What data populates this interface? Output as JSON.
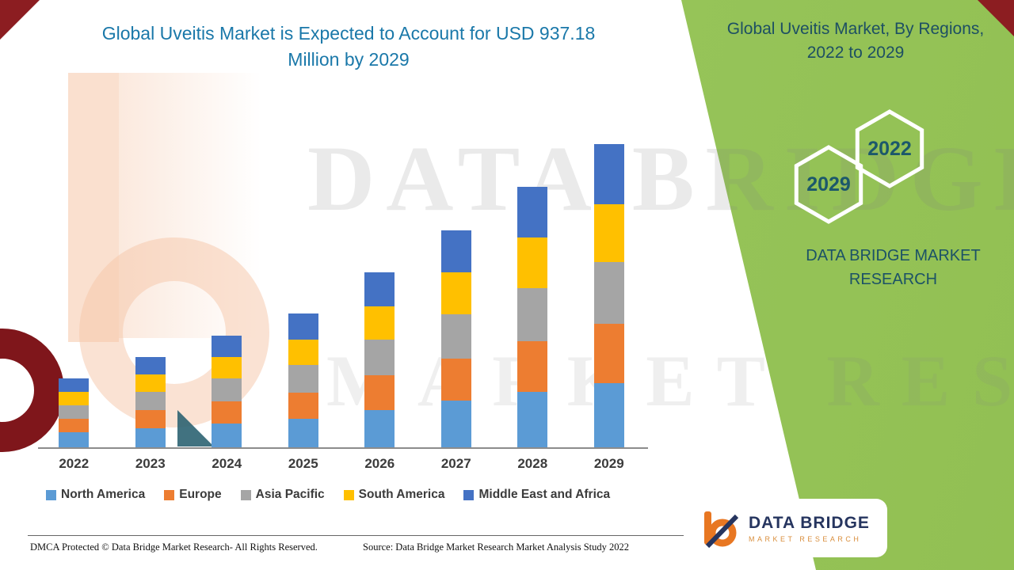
{
  "page": {
    "title_line1": "Global Uveitis Market is Expected to Account for USD 937.18",
    "title_line2": "Million by 2029"
  },
  "side_panel": {
    "heading_line1": "Global Uveitis Market, By Regions,",
    "heading_line2": "2022 to 2029",
    "hexagon_top": "2022",
    "hexagon_bottom": "2029",
    "brand_line1": "DATA BRIDGE MARKET",
    "brand_line2": "RESEARCH"
  },
  "watermark": {
    "line1": "DATA BRIDGE",
    "line2": "MARKET RESEARCH"
  },
  "logo": {
    "name": "DATA BRIDGE",
    "subtitle": "MARKET RESEARCH"
  },
  "footer": {
    "dmca": "DMCA Protected © Data Bridge Market Research- All Rights Reserved.",
    "source": "Source: Data Bridge Market Research Market Analysis Study 2022"
  },
  "colors": {
    "green_panel": "#8FBE4F",
    "title_blue": "#1A78A9",
    "dark_teal": "#1D4F63",
    "accent_red": "#8C1D21"
  },
  "chart_data": {
    "type": "bar",
    "stacked": true,
    "title": "Global Uveitis Market is Expected to Account for USD 937.18 Million by 2029",
    "xlabel": "",
    "ylabel": "",
    "grid": false,
    "legend_position": "bottom",
    "ylim": [
      0,
      960
    ],
    "categories": [
      "2022",
      "2023",
      "2024",
      "2025",
      "2026",
      "2027",
      "2028",
      "2029"
    ],
    "series": [
      {
        "name": "North America",
        "color": "#5B9BD5",
        "values": [
          46,
          60,
          74,
          89,
          116,
          144,
          172,
          199
        ]
      },
      {
        "name": "Europe",
        "color": "#ED7D31",
        "values": [
          42,
          55,
          68,
          81,
          106,
          131,
          157,
          182
        ]
      },
      {
        "name": "Asia Pacific",
        "color": "#A5A5A5",
        "values": [
          43,
          57,
          70,
          84,
          110,
          137,
          164,
          191
        ]
      },
      {
        "name": "South America",
        "color": "#FFC000",
        "values": [
          41,
          54,
          67,
          80,
          104,
          130,
          156,
          181
        ]
      },
      {
        "name": "Middle East and Africa",
        "color": "#4472C4",
        "values": [
          41,
          54,
          67,
          81,
          104,
          130,
          156,
          184.18
        ]
      }
    ],
    "totals_usd_million": [
      213,
      280,
      346,
      415,
      540,
      672,
      805,
      937.18
    ]
  }
}
